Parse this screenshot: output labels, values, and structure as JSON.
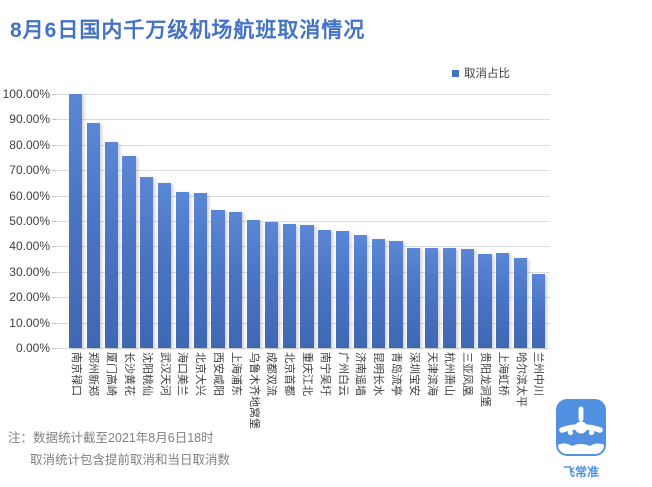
{
  "header": {
    "title": "8月6日国内千万级机场航班取消情况",
    "title_color": "#4472C4"
  },
  "legend": {
    "label": "取消占比",
    "marker_color": "#4472C4"
  },
  "chart_data": {
    "type": "bar",
    "title": "8月6日国内千万级机场航班取消情况",
    "series_name": "取消占比",
    "categories": [
      "南京禄口",
      "郑州新郑",
      "厦门高崎",
      "长沙黄花",
      "沈阳桃仙",
      "武汉天河",
      "海口美兰",
      "北京大兴",
      "西安咸阳",
      "上海浦东",
      "乌鲁木齐地窝堡",
      "成都双流",
      "北京首都",
      "重庆江北",
      "南宁吴圩",
      "广州白云",
      "济南遥墙",
      "昆明长水",
      "青岛流亭",
      "深圳宝安",
      "天津滨海",
      "杭州萧山",
      "三亚凤凰",
      "贵阳龙洞堡",
      "上海虹桥",
      "哈尔滨太平",
      "兰州中川"
    ],
    "values": [
      100,
      88.5,
      81,
      75.5,
      67.5,
      65,
      61.5,
      61,
      54.5,
      53.5,
      50.5,
      49.5,
      49,
      48.5,
      46.5,
      46,
      44.5,
      43,
      42,
      39.5,
      39.5,
      39.5,
      39,
      37,
      37.5,
      35.5,
      29
    ],
    "unit": "percent",
    "xlabel": "",
    "ylabel": "",
    "ylim": [
      0,
      100
    ],
    "ytick_labels": [
      "0.00%",
      "10.00%",
      "20.00%",
      "30.00%",
      "40.00%",
      "50.00%",
      "60.00%",
      "70.00%",
      "80.00%",
      "90.00%",
      "100.00%"
    ],
    "grid": true,
    "legend_position": "top-right",
    "bar_color": "#4472C4",
    "xlabel_rotation": "90deg-read-downward"
  },
  "footnote": {
    "line1": "注：数据统计截至2021年8月6日18时",
    "line2": "取消统计包含提前取消和当日取消数"
  },
  "logo": {
    "text": "飞常准",
    "icon": "variflight-airplane-cloud-icon",
    "color": "#5291E2"
  }
}
